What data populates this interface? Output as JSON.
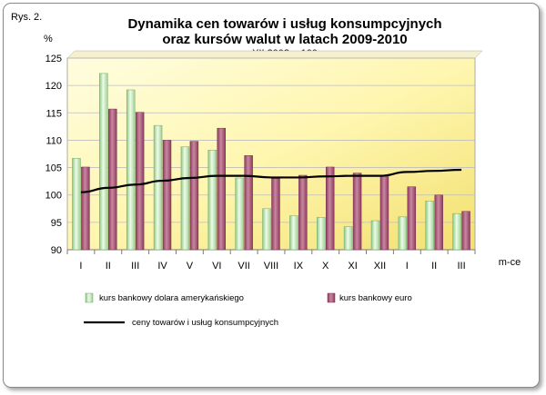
{
  "figure_label": "Rys. 2.",
  "chart_data": {
    "type": "bar",
    "title": "Dynamika cen towarów i usług konsumpcyjnych",
    "title_line2": "oraz kursów walut w latach 2009-2010",
    "subtitle": "XII 2008 = 100",
    "ylabel": "%",
    "xlabel": "m-ce",
    "ylim": [
      90,
      125
    ],
    "yticks": [
      90,
      95,
      100,
      105,
      110,
      115,
      120,
      125
    ],
    "grid": true,
    "legend_position": "bottom",
    "categories": [
      "I",
      "II",
      "III",
      "IV",
      "V",
      "VI",
      "VII",
      "VIII",
      "IX",
      "X",
      "XI",
      "XII",
      "I",
      "II",
      "III"
    ],
    "series": [
      {
        "name": "kurs bankowy dolara amerykańskiego",
        "type": "bar",
        "color": "#bfe6b6",
        "values": [
          106.7,
          122.2,
          119.2,
          112.7,
          108.8,
          108.2,
          103.1,
          97.5,
          96.2,
          95.9,
          94.2,
          95.3,
          96.0,
          98.9,
          96.6
        ]
      },
      {
        "name": "kurs bankowy euro",
        "type": "bar",
        "color": "#b35e7e",
        "values": [
          105.1,
          115.7,
          115.1,
          110.0,
          109.8,
          112.2,
          107.2,
          103.0,
          103.6,
          105.1,
          104.0,
          103.6,
          101.5,
          100.0,
          97.0
        ]
      },
      {
        "name": "ceny towarów i usług konsumpcyjnych",
        "type": "line",
        "color": "#000000",
        "values": [
          100.5,
          101.3,
          101.9,
          102.6,
          103.1,
          103.5,
          103.5,
          103.2,
          103.2,
          103.4,
          103.5,
          103.5,
          104.2,
          104.4,
          104.6
        ]
      }
    ]
  }
}
